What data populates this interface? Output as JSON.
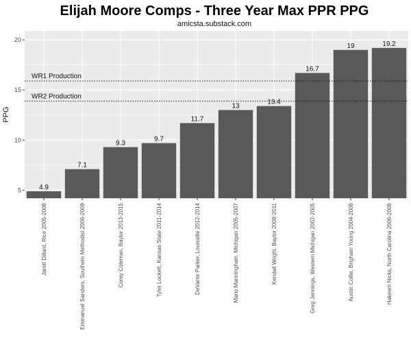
{
  "chart": {
    "title": "Elijah Moore Comps - Three Year Max PPR PPG",
    "subtitle": "amicsta.substack.com",
    "ylabel": "PPG"
  },
  "chart_data": {
    "type": "bar",
    "title": "Elijah Moore Comps - Three Year Max PPR PPG",
    "subtitle": "amicsta.substack.com",
    "xlabel": "",
    "ylabel": "PPG",
    "categories": [
      "Jarett Dillard, Rice 2005-2008",
      "Emmanuel Sanders, Southern Methodist 2006-2009",
      "Corey Coleman, Baylor 2013-2015",
      "Tyler Lockett, Kansas State 2011-2014",
      "DeVante Parker, Louisville 2012-2014",
      "Mario Manningham, Michigan 2005-2007",
      "Kendall Wright, Baylor 2008-2011",
      "Greg Jennings, Western Michigan 2002-2005",
      "Austin Collie, Brigham Young 2004-2008",
      "Hakeem Nicks, North Carolina 2006-2008"
    ],
    "values": [
      4.9,
      7.1,
      9.3,
      9.7,
      11.7,
      13,
      13.4,
      16.7,
      19,
      19.2
    ],
    "data_labels": [
      "4.9",
      "7.1",
      "9.3",
      "9.7",
      "11.7",
      "13",
      "13.4",
      "16.7",
      "19",
      "19.2"
    ],
    "ylim": [
      4.2,
      20.9
    ],
    "yticks": [
      5,
      10,
      15,
      20
    ],
    "ytick_labels": [
      "5",
      "10",
      "15",
      "20"
    ],
    "reference_lines": [
      {
        "label": "WR1 Production",
        "value": 15.9
      },
      {
        "label": "WR2 Production",
        "value": 13.9
      }
    ],
    "bar_color": "#595959",
    "panel_background": "#ebebeb",
    "grid": true,
    "legend": "none"
  }
}
